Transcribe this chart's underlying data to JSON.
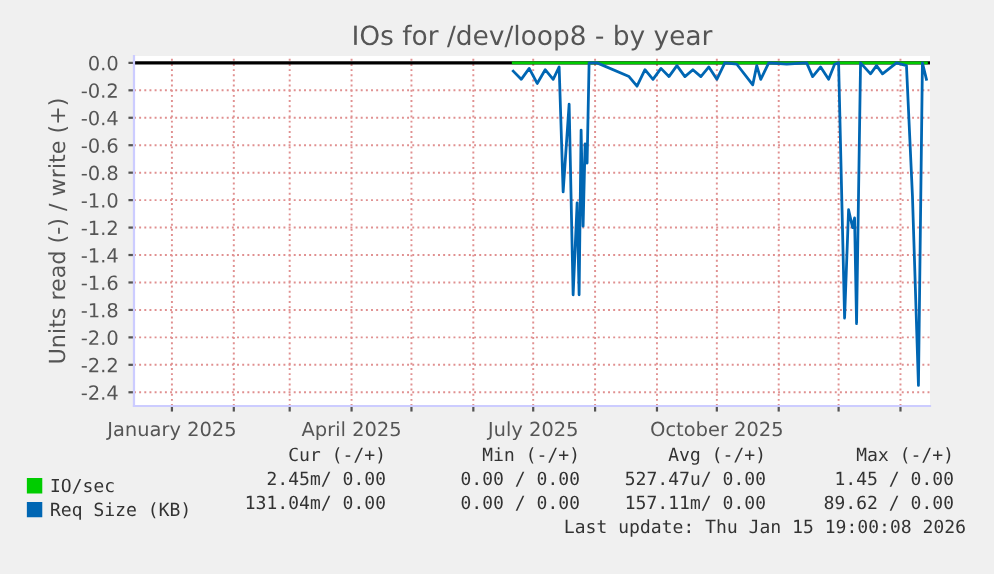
{
  "chart_data": {
    "type": "line",
    "title": "IOs for /dev/loop8 - by year",
    "ylabel": "Units read (-) / write (+)",
    "xlim": [
      "2024-12-13",
      "2026-01-15T19:00"
    ],
    "xticks": [
      {
        "value": "2025-01-01",
        "label": "January 2025"
      },
      {
        "value": "2025-02-01",
        "label": null
      },
      {
        "value": "2025-03-01",
        "label": null
      },
      {
        "value": "2025-04-01",
        "label": "April 2025"
      },
      {
        "value": "2025-05-01",
        "label": null
      },
      {
        "value": "2025-06-01",
        "label": null
      },
      {
        "value": "2025-07-01",
        "label": "July 2025"
      },
      {
        "value": "2025-08-01",
        "label": null
      },
      {
        "value": "2025-09-01",
        "label": null
      },
      {
        "value": "2025-10-01",
        "label": "October 2025"
      },
      {
        "value": "2025-11-01",
        "label": null
      },
      {
        "value": "2025-12-01",
        "label": null
      },
      {
        "value": "2026-01-01",
        "label": null
      }
    ],
    "ylim": [
      -2.5,
      0.05
    ],
    "yticks": [
      {
        "value": 0,
        "label": "0.0"
      },
      {
        "value": -0.2,
        "label": "-0.2"
      },
      {
        "value": -0.4,
        "label": "-0.4"
      },
      {
        "value": -0.6,
        "label": "-0.6"
      },
      {
        "value": -0.8,
        "label": "-0.8"
      },
      {
        "value": -1.0,
        "label": "-1.0"
      },
      {
        "value": -1.2,
        "label": "-1.2"
      },
      {
        "value": -1.4,
        "label": "-1.4"
      },
      {
        "value": -1.6,
        "label": "-1.6"
      },
      {
        "value": -1.8,
        "label": "-1.8"
      },
      {
        "value": -2.0,
        "label": "-2.0"
      },
      {
        "value": -2.2,
        "label": "-2.2"
      },
      {
        "value": -2.4,
        "label": "-2.4"
      }
    ],
    "grid": true,
    "legend": "bottom left",
    "ref_lines": [
      {
        "axis": "y",
        "value": 0,
        "color": "#000000"
      }
    ],
    "series": [
      {
        "name": "IO/sec",
        "color": "#00cc00",
        "x": [
          "2025-06-21",
          "2025-10-01",
          "2026-01-14"
        ],
        "values": [
          0,
          0,
          0
        ]
      },
      {
        "name": "Req Size (KB)",
        "color": "#0066b3",
        "x": [
          "2025-06-21",
          "2025-06-25",
          "2025-06-29",
          "2025-07-03",
          "2025-07-07",
          "2025-07-11",
          "2025-07-14",
          "2025-07-16",
          "2025-07-19",
          "2025-07-21",
          "2025-07-23",
          "2025-07-24",
          "2025-07-25",
          "2025-07-26",
          "2025-07-27",
          "2025-07-28",
          "2025-07-29",
          "2025-08-02",
          "2025-08-18",
          "2025-08-22",
          "2025-08-26",
          "2025-08-30",
          "2025-09-03",
          "2025-09-07",
          "2025-09-11",
          "2025-09-15",
          "2025-09-19",
          "2025-09-23",
          "2025-09-27",
          "2025-10-01",
          "2025-10-05",
          "2025-10-11",
          "2025-10-19",
          "2025-10-21",
          "2025-10-23",
          "2025-10-27",
          "2025-11-05",
          "2025-11-15",
          "2025-11-18",
          "2025-11-22",
          "2025-11-26",
          "2025-11-29",
          "2025-12-01",
          "2025-12-04",
          "2025-12-06",
          "2025-12-08",
          "2025-12-09",
          "2025-12-10",
          "2025-12-12",
          "2025-12-17",
          "2025-12-20",
          "2025-12-23",
          "2025-12-30",
          "2026-01-04",
          "2026-01-07",
          "2026-01-10",
          "2026-01-12",
          "2026-01-14"
        ],
        "values": [
          -0.06,
          -0.12,
          -0.04,
          -0.15,
          -0.05,
          -0.12,
          -0.03,
          -0.94,
          -0.3,
          -1.69,
          -1.02,
          -1.69,
          -0.49,
          -1.19,
          -0.59,
          -0.73,
          0,
          0,
          -0.1,
          -0.17,
          -0.05,
          -0.12,
          -0.04,
          -0.1,
          -0.02,
          -0.1,
          -0.05,
          -0.1,
          -0.03,
          -0.12,
          0,
          -0.01,
          -0.16,
          -0.02,
          -0.12,
          0,
          -0.01,
          0,
          -0.1,
          -0.03,
          -0.12,
          -0.01,
          0,
          -1.86,
          -1.07,
          -1.2,
          -1.13,
          -1.9,
          0,
          -0.08,
          -0.02,
          -0.08,
          0,
          -0.02,
          -0.97,
          -2.35,
          0,
          -0.12
        ]
      }
    ],
    "annotations": [
      "Cur (-/+)",
      "Min (-/+)",
      "Avg (-/+)",
      "Max (-/+)",
      "2.45m/ 0.00",
      "0.00 / 0.00",
      "527.47u/ 0.00",
      "1.45 / 0.00",
      "131.04m/ 0.00",
      "0.00 / 0.00",
      "157.11m/ 0.00",
      "89.62 / 0.00",
      "Last update: Thu Jan 15 19:00:08 2026"
    ]
  }
}
